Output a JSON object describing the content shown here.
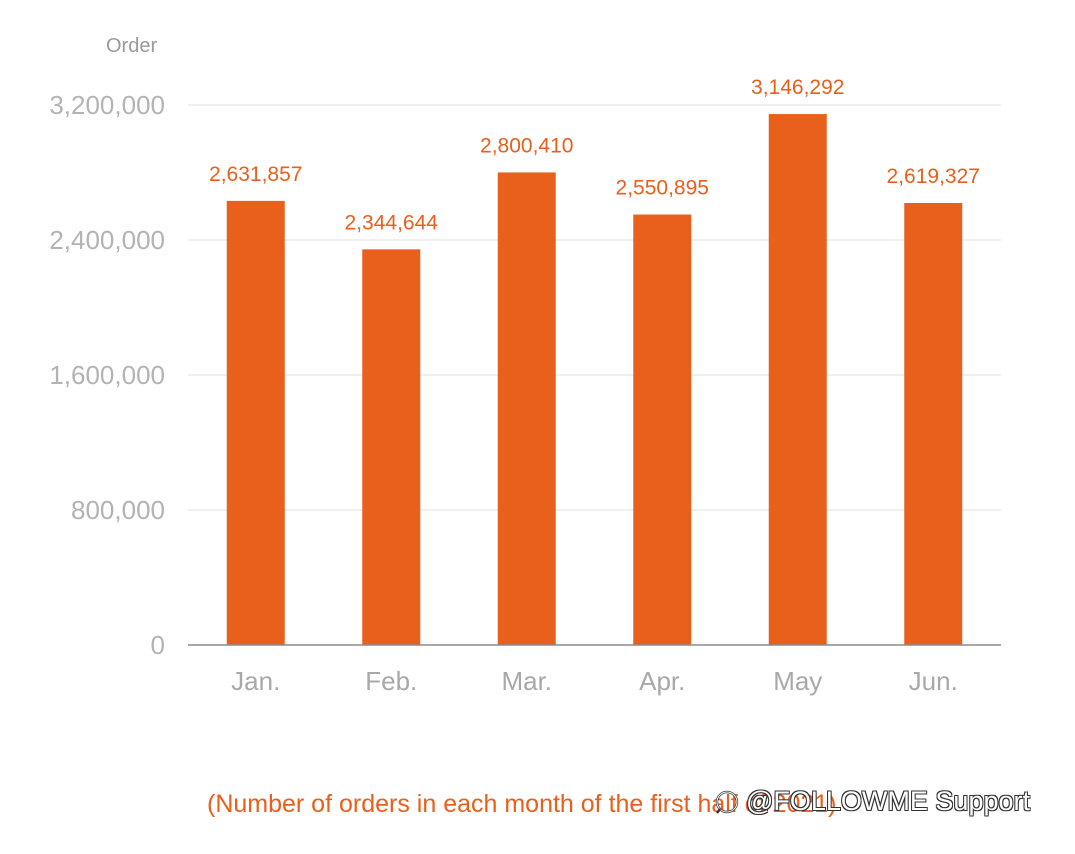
{
  "chart_data": {
    "type": "bar",
    "ylabel": "Order",
    "categories": [
      "Jan.",
      "Feb.",
      "Mar.",
      "Apr.",
      "May",
      "Jun."
    ],
    "values": [
      2631857,
      2344644,
      2800410,
      2550895,
      3146292,
      2619327
    ],
    "value_labels": [
      "2,631,857",
      "2,344,644",
      "2,800,410",
      "2,550,895",
      "3,146,292",
      "2,619,327"
    ],
    "yticks": [
      0,
      800000,
      1600000,
      2400000,
      3200000
    ],
    "ytick_labels": [
      "0",
      "800,000",
      "1,600,000",
      "2,400,000",
      "3,200,000"
    ],
    "ylim": [
      0,
      3200000
    ],
    "grid": true,
    "legend": "none",
    "caption": "(Number of orders in each month of the first half of 2021)"
  },
  "watermark": {
    "text": "@FOLLOWME Support",
    "icon": "zhihu-logo-icon"
  },
  "colors": {
    "bar": "#e8601c",
    "value_label": "#e8601c",
    "caption": "#e8601c",
    "grid": "#ececec",
    "axis": "#8c8c8c"
  }
}
